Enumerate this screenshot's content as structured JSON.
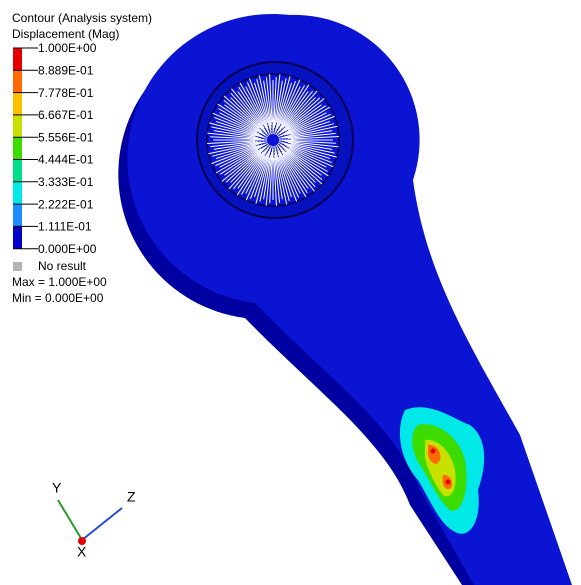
{
  "legend": {
    "title": [
      "Contour (Analysis system)",
      "Displacement (Mag)"
    ],
    "levels": [
      "1.000E+00",
      "8.889E-01",
      "7.778E-01",
      "6.667E-01",
      "5.556E-01",
      "4.444E-01",
      "3.333E-01",
      "2.222E-01",
      "1.111E-01",
      "0.000E+00"
    ],
    "band_colors": [
      "#e60000",
      "#ff6a00",
      "#ffc000",
      "#c8e000",
      "#3cdc00",
      "#00e08c",
      "#00e8e8",
      "#1e8cff",
      "#0000c8"
    ],
    "no_result": "No result",
    "max": "Max = 1.000E+00",
    "min": "Min = 0.000E+00"
  },
  "triad": {
    "y": "Y",
    "z": "Z",
    "x": "X"
  }
}
